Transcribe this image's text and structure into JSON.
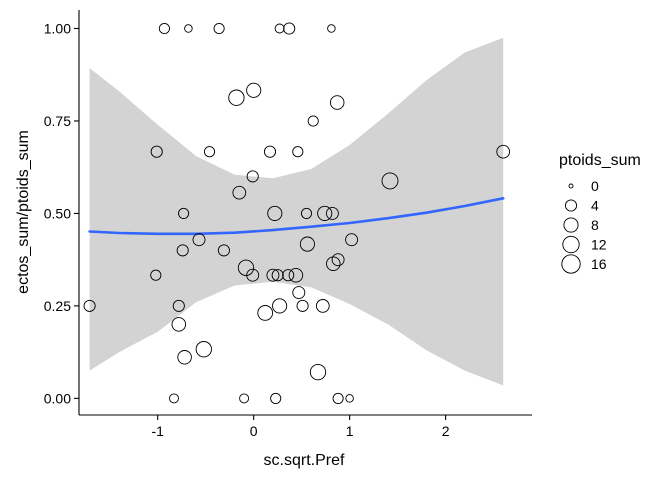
{
  "chart_data": {
    "type": "scatter",
    "title": "",
    "xlabel": "sc.sqrt.Pref",
    "ylabel": "ectos_sum/ptoids_sum",
    "xlim": [
      -1.82,
      2.9
    ],
    "ylim": [
      -0.045,
      1.05
    ],
    "x_ticks": [
      -1,
      0,
      1,
      2
    ],
    "x_tick_labels": [
      "-1",
      "0",
      "1",
      "2"
    ],
    "y_ticks": [
      0.0,
      0.25,
      0.5,
      0.75,
      1.0
    ],
    "y_tick_labels": [
      "0.00",
      "0.25",
      "0.50",
      "0.75",
      "1.00"
    ],
    "grid": false,
    "legend_position": "right",
    "legend": {
      "title": "ptoids_sum",
      "entries": [
        {
          "label": "0",
          "value": 0
        },
        {
          "label": "4",
          "value": 4
        },
        {
          "label": "8",
          "value": 8
        },
        {
          "label": "12",
          "value": 12
        },
        {
          "label": "16",
          "value": 16
        }
      ]
    },
    "points": [
      {
        "x": -0.93,
        "y": 1.0,
        "size": 3
      },
      {
        "x": -0.68,
        "y": 1.0,
        "size": 1
      },
      {
        "x": -0.36,
        "y": 1.0,
        "size": 3
      },
      {
        "x": 0.27,
        "y": 1.0,
        "size": 2
      },
      {
        "x": 0.37,
        "y": 1.0,
        "size": 4
      },
      {
        "x": 0.81,
        "y": 1.0,
        "size": 1
      },
      {
        "x": -0.18,
        "y": 0.813,
        "size": 10
      },
      {
        "x": 0.0,
        "y": 0.833,
        "size": 8
      },
      {
        "x": 0.87,
        "y": 0.8,
        "size": 7
      },
      {
        "x": 0.62,
        "y": 0.75,
        "size": 3
      },
      {
        "x": -1.01,
        "y": 0.667,
        "size": 4
      },
      {
        "x": -0.46,
        "y": 0.667,
        "size": 3
      },
      {
        "x": 0.17,
        "y": 0.667,
        "size": 4
      },
      {
        "x": 0.46,
        "y": 0.667,
        "size": 3
      },
      {
        "x": 2.6,
        "y": 0.667,
        "size": 6
      },
      {
        "x": -0.01,
        "y": 0.6,
        "size": 4
      },
      {
        "x": 1.42,
        "y": 0.588,
        "size": 11
      },
      {
        "x": -0.15,
        "y": 0.556,
        "size": 6
      },
      {
        "x": -0.73,
        "y": 0.5,
        "size": 3
      },
      {
        "x": 0.22,
        "y": 0.5,
        "size": 8
      },
      {
        "x": 0.55,
        "y": 0.5,
        "size": 3
      },
      {
        "x": 0.74,
        "y": 0.5,
        "size": 8
      },
      {
        "x": 0.82,
        "y": 0.5,
        "size": 5
      },
      {
        "x": -0.57,
        "y": 0.429,
        "size": 5
      },
      {
        "x": 1.02,
        "y": 0.429,
        "size": 5
      },
      {
        "x": -0.74,
        "y": 0.4,
        "size": 4
      },
      {
        "x": -0.31,
        "y": 0.4,
        "size": 4
      },
      {
        "x": 0.56,
        "y": 0.417,
        "size": 8
      },
      {
        "x": 0.88,
        "y": 0.375,
        "size": 5
      },
      {
        "x": 0.83,
        "y": 0.364,
        "size": 7
      },
      {
        "x": -0.08,
        "y": 0.353,
        "size": 10
      },
      {
        "x": -1.02,
        "y": 0.333,
        "size": 3
      },
      {
        "x": -0.01,
        "y": 0.333,
        "size": 5
      },
      {
        "x": 0.2,
        "y": 0.333,
        "size": 5
      },
      {
        "x": 0.25,
        "y": 0.333,
        "size": 4
      },
      {
        "x": 0.36,
        "y": 0.333,
        "size": 4
      },
      {
        "x": 0.44,
        "y": 0.333,
        "size": 7
      },
      {
        "x": 0.47,
        "y": 0.286,
        "size": 5
      },
      {
        "x": -1.71,
        "y": 0.25,
        "size": 4
      },
      {
        "x": -0.78,
        "y": 0.25,
        "size": 4
      },
      {
        "x": 0.27,
        "y": 0.25,
        "size": 8
      },
      {
        "x": 0.51,
        "y": 0.25,
        "size": 4
      },
      {
        "x": 0.72,
        "y": 0.25,
        "size": 6
      },
      {
        "x": 0.12,
        "y": 0.231,
        "size": 9
      },
      {
        "x": -0.78,
        "y": 0.2,
        "size": 7
      },
      {
        "x": -0.72,
        "y": 0.111,
        "size": 7
      },
      {
        "x": -0.52,
        "y": 0.133,
        "size": 10
      },
      {
        "x": 0.67,
        "y": 0.071,
        "size": 10
      },
      {
        "x": -0.83,
        "y": 0.0,
        "size": 2
      },
      {
        "x": -0.1,
        "y": 0.0,
        "size": 2
      },
      {
        "x": 0.23,
        "y": 0.0,
        "size": 3
      },
      {
        "x": 0.88,
        "y": 0.0,
        "size": 3
      },
      {
        "x": 1.0,
        "y": 0.0,
        "size": 1
      }
    ],
    "fit": {
      "method": "smooth",
      "color": "#3366FF",
      "fill": "#D3D3D3",
      "line": [
        {
          "x": -1.71,
          "y": 0.451
        },
        {
          "x": -1.4,
          "y": 0.447
        },
        {
          "x": -1.0,
          "y": 0.445
        },
        {
          "x": -0.6,
          "y": 0.445
        },
        {
          "x": -0.2,
          "y": 0.448
        },
        {
          "x": 0.2,
          "y": 0.455
        },
        {
          "x": 0.6,
          "y": 0.464
        },
        {
          "x": 1.0,
          "y": 0.474
        },
        {
          "x": 1.4,
          "y": 0.487
        },
        {
          "x": 1.8,
          "y": 0.502
        },
        {
          "x": 2.2,
          "y": 0.52
        },
        {
          "x": 2.6,
          "y": 0.541
        }
      ],
      "upper": [
        {
          "x": -1.71,
          "y": 0.893
        },
        {
          "x": -1.4,
          "y": 0.83
        },
        {
          "x": -1.0,
          "y": 0.74
        },
        {
          "x": -0.6,
          "y": 0.655
        },
        {
          "x": -0.2,
          "y": 0.605
        },
        {
          "x": 0.2,
          "y": 0.595
        },
        {
          "x": 0.6,
          "y": 0.62
        },
        {
          "x": 1.0,
          "y": 0.685
        },
        {
          "x": 1.4,
          "y": 0.77
        },
        {
          "x": 1.8,
          "y": 0.86
        },
        {
          "x": 2.2,
          "y": 0.935
        },
        {
          "x": 2.6,
          "y": 0.975
        }
      ],
      "lower": [
        {
          "x": -1.71,
          "y": 0.075
        },
        {
          "x": -1.4,
          "y": 0.125
        },
        {
          "x": -1.0,
          "y": 0.18
        },
        {
          "x": -0.6,
          "y": 0.26
        },
        {
          "x": -0.2,
          "y": 0.305
        },
        {
          "x": 0.2,
          "y": 0.315
        },
        {
          "x": 0.6,
          "y": 0.3
        },
        {
          "x": 1.0,
          "y": 0.255
        },
        {
          "x": 1.4,
          "y": 0.2
        },
        {
          "x": 1.8,
          "y": 0.13
        },
        {
          "x": 2.2,
          "y": 0.075
        },
        {
          "x": 2.6,
          "y": 0.035
        }
      ]
    }
  }
}
